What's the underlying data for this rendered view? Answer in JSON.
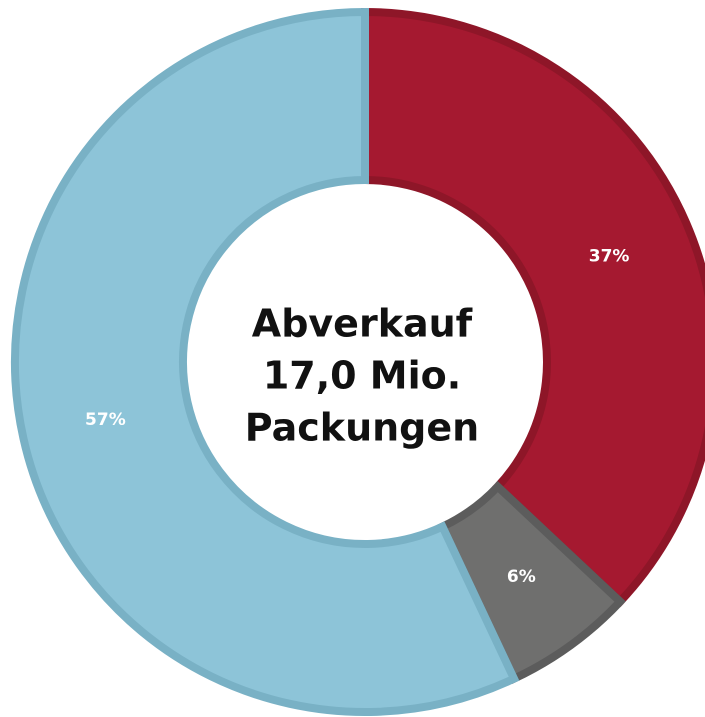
{
  "chart_data": {
    "type": "donut",
    "center_label": [
      "Abverkauf",
      "17,0 Mio.",
      "Packungen"
    ],
    "values": [
      37,
      6,
      57
    ],
    "value_labels": [
      "37%",
      "6%",
      "57%"
    ],
    "colors": [
      "#a51930",
      "#6f6f6e",
      "#8dc4d8"
    ],
    "stroke_colors": [
      "#8e1628",
      "#5c5c5c",
      "#79b1c5"
    ]
  }
}
